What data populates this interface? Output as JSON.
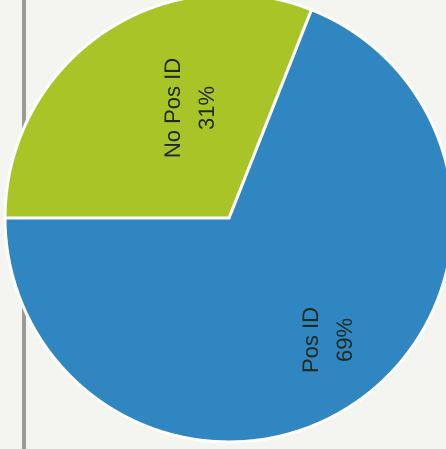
{
  "chart_data": {
    "type": "pie",
    "categories": [
      "Pos ID",
      "No Pos ID"
    ],
    "values": [
      69,
      31
    ],
    "labels": [
      {
        "name": "Pos ID",
        "pct": "69%"
      },
      {
        "name": "No Pos ID",
        "pct": "31%"
      }
    ],
    "colors": [
      "#2f86c0",
      "#a9c427"
    ],
    "title": "",
    "legend": "none"
  }
}
